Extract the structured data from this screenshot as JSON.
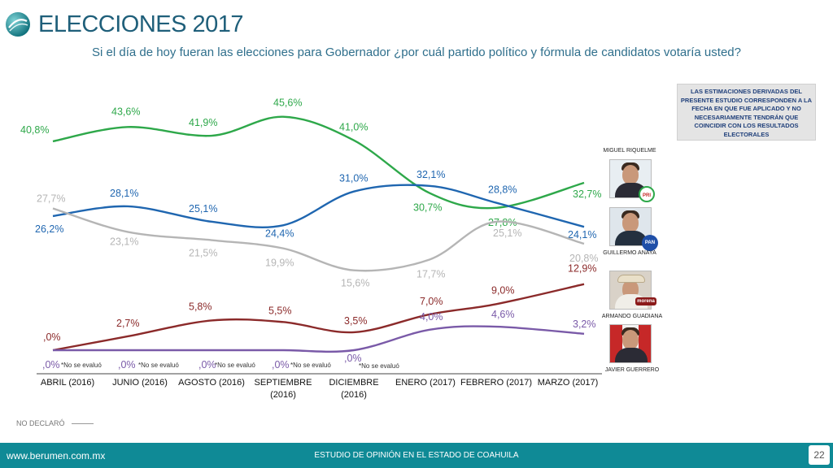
{
  "header": {
    "title": "ELECCIONES 2017",
    "subtitle": "Si el día de hoy fueran las elecciones para Gobernador ¿por cuál partido político y fórmula de candidatos votaría usted?"
  },
  "disclaimer": "LAS ESTIMACIONES DERIVADAS DEL PRESENTE ESTUDIO CORRESPONDEN A LA FECHA EN QUE FUE APLICADO Y NO NECESARIAMENTE TENDRÁN QUE COINCIDIR CON LOS RESULTADOS ELECTORALES",
  "candidates": [
    {
      "name": "MIGUEL RIQUELME",
      "party": "PRI",
      "color": "#2ea84a"
    },
    {
      "name": "GUILLERMO ANAYA",
      "party": "PAN",
      "color": "#1f66b0"
    },
    {
      "name": "ARMANDO GUADIANA",
      "party": "morena",
      "color": "#8b2a2a"
    },
    {
      "name": "JAVIER GUERRERO",
      "party": "",
      "color": "#7a5aa8"
    }
  ],
  "chart_data": {
    "type": "line",
    "categories": [
      "ABRIL (2016)",
      "JUNIO (2016)",
      "AGOSTO (2016)",
      "SEPTIEMBRE (2016)",
      "DICIEMBRE (2016)",
      "ENERO (2017)",
      "FEBRERO (2017)",
      "MARZO (2017)"
    ],
    "series": [
      {
        "name": "MIGUEL RIQUELME",
        "color": "#2ea84a",
        "values": [
          40.8,
          43.6,
          41.9,
          45.6,
          41.0,
          30.7,
          27.8,
          32.7
        ],
        "labels": [
          "40,8%",
          "43,6%",
          "41,9%",
          "45,6%",
          "41,0%",
          "30,7%",
          "27,8%",
          "32,7%"
        ]
      },
      {
        "name": "GUILLERMO ANAYA",
        "color": "#1f66b0",
        "values": [
          26.2,
          28.1,
          25.1,
          24.4,
          31.0,
          32.1,
          28.8,
          24.1
        ],
        "labels": [
          "26,2%",
          "28,1%",
          "25,1%",
          "24,4%",
          "31,0%",
          "32,1%",
          "28,8%",
          "24,1%"
        ]
      },
      {
        "name": "NO DECLARÓ",
        "color": "#b5b5b5",
        "values": [
          27.7,
          23.1,
          21.5,
          19.9,
          15.6,
          17.7,
          25.1,
          20.8
        ],
        "labels": [
          "27,7%",
          "23,1%",
          "21,5%",
          "19,9%",
          "15,6%",
          "17,7%",
          "25,1%",
          "20,8%"
        ]
      },
      {
        "name": "ARMANDO GUADIANA",
        "color": "#8b2a2a",
        "values": [
          0,
          2.7,
          5.8,
          5.5,
          3.5,
          7.0,
          9.0,
          12.9
        ],
        "labels": [
          ",0%",
          "2,7%",
          "5,8%",
          "5,5%",
          "3,5%",
          "7,0%",
          "9,0%",
          "12,9%"
        ]
      },
      {
        "name": "JAVIER GUERRERO",
        "color": "#7a5aa8",
        "values": [
          0,
          0,
          0,
          0,
          0,
          4.0,
          4.6,
          3.2
        ],
        "labels": [
          ",0%",
          ",0%",
          ",0%",
          ",0%",
          ",0%",
          "4,0%",
          "4,6%",
          "3,2%"
        ]
      }
    ],
    "annotation": "*No se evaluó",
    "ylim": [
      0,
      50
    ]
  },
  "legend": {
    "no_declaro": "NO DECLARÓ"
  },
  "footer": {
    "url": "www.berumen.com.mx",
    "study": "ESTUDIO DE OPINIÓN EN EL ESTADO DE COAHUILA",
    "page": "22"
  }
}
